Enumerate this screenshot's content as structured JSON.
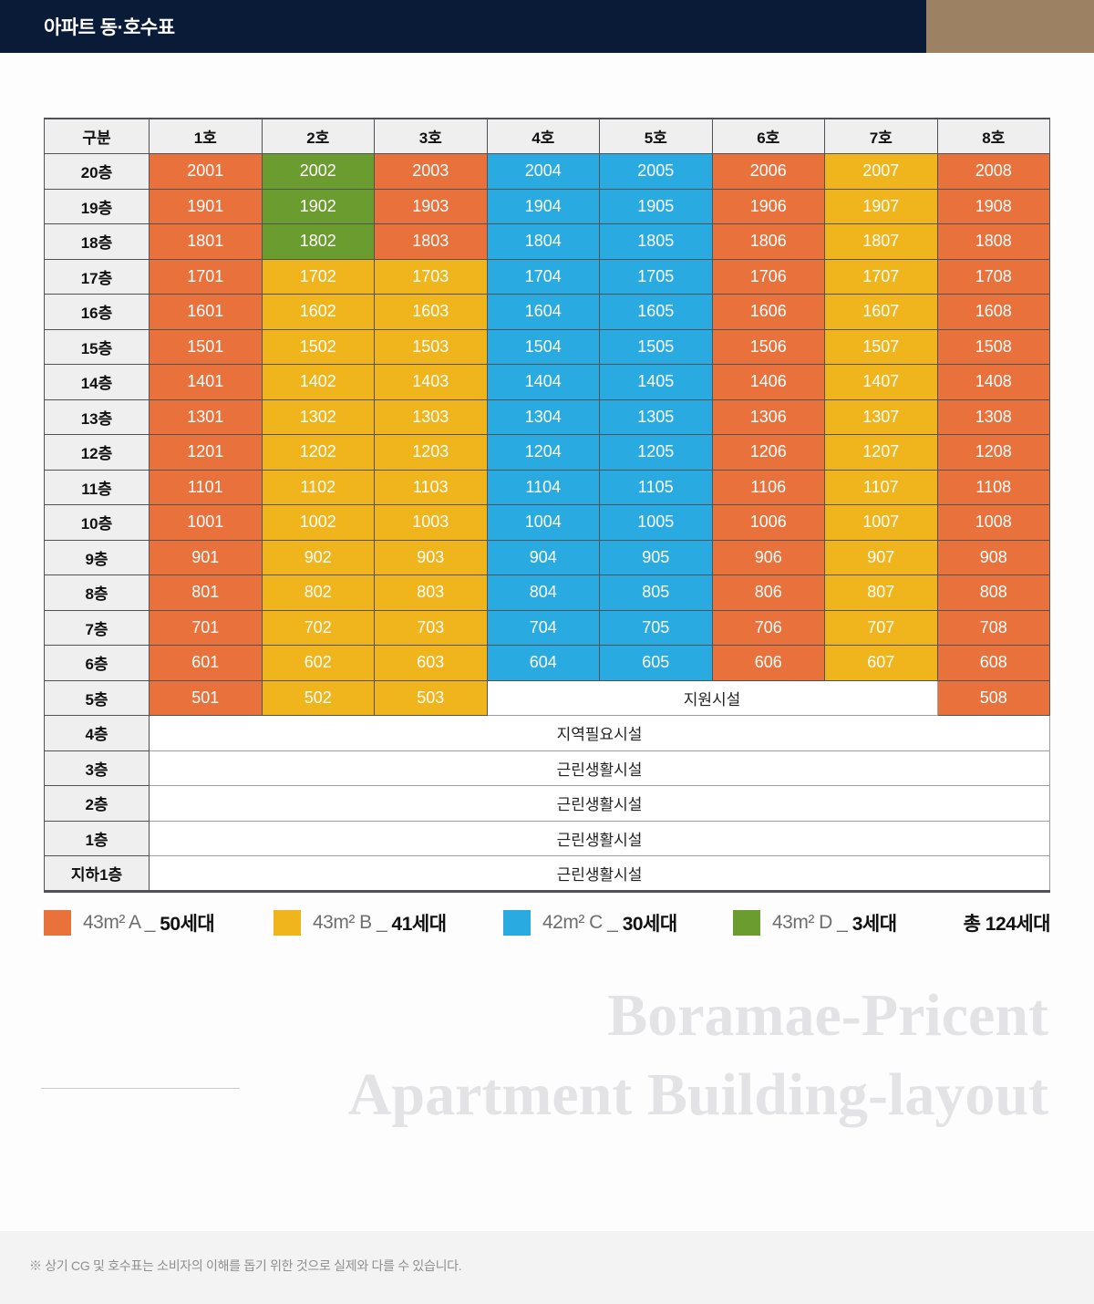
{
  "header": {
    "title": "아파트 동·호수표",
    "navy_color": "#0a1b37",
    "tan_color": "#9c8163"
  },
  "palette": {
    "A": "#e8713c",
    "B": "#f0b41d",
    "C": "#29abe2",
    "D": "#6a9c2f"
  },
  "table": {
    "corner_label": "구분",
    "column_headers": [
      "1호",
      "2호",
      "3호",
      "4호",
      "5호",
      "6호",
      "7호",
      "8호"
    ],
    "floors": [
      {
        "label": "20층",
        "cells": [
          {
            "text": "2001",
            "type": "A"
          },
          {
            "text": "2002",
            "type": "D"
          },
          {
            "text": "2003",
            "type": "A"
          },
          {
            "text": "2004",
            "type": "C"
          },
          {
            "text": "2005",
            "type": "C"
          },
          {
            "text": "2006",
            "type": "A"
          },
          {
            "text": "2007",
            "type": "B"
          },
          {
            "text": "2008",
            "type": "A"
          }
        ]
      },
      {
        "label": "19층",
        "cells": [
          {
            "text": "1901",
            "type": "A"
          },
          {
            "text": "1902",
            "type": "D"
          },
          {
            "text": "1903",
            "type": "A"
          },
          {
            "text": "1904",
            "type": "C"
          },
          {
            "text": "1905",
            "type": "C"
          },
          {
            "text": "1906",
            "type": "A"
          },
          {
            "text": "1907",
            "type": "B"
          },
          {
            "text": "1908",
            "type": "A"
          }
        ]
      },
      {
        "label": "18층",
        "cells": [
          {
            "text": "1801",
            "type": "A"
          },
          {
            "text": "1802",
            "type": "D"
          },
          {
            "text": "1803",
            "type": "A"
          },
          {
            "text": "1804",
            "type": "C"
          },
          {
            "text": "1805",
            "type": "C"
          },
          {
            "text": "1806",
            "type": "A"
          },
          {
            "text": "1807",
            "type": "B"
          },
          {
            "text": "1808",
            "type": "A"
          }
        ]
      },
      {
        "label": "17층",
        "cells": [
          {
            "text": "1701",
            "type": "A"
          },
          {
            "text": "1702",
            "type": "B"
          },
          {
            "text": "1703",
            "type": "B"
          },
          {
            "text": "1704",
            "type": "C"
          },
          {
            "text": "1705",
            "type": "C"
          },
          {
            "text": "1706",
            "type": "A"
          },
          {
            "text": "1707",
            "type": "B"
          },
          {
            "text": "1708",
            "type": "A"
          }
        ]
      },
      {
        "label": "16층",
        "cells": [
          {
            "text": "1601",
            "type": "A"
          },
          {
            "text": "1602",
            "type": "B"
          },
          {
            "text": "1603",
            "type": "B"
          },
          {
            "text": "1604",
            "type": "C"
          },
          {
            "text": "1605",
            "type": "C"
          },
          {
            "text": "1606",
            "type": "A"
          },
          {
            "text": "1607",
            "type": "B"
          },
          {
            "text": "1608",
            "type": "A"
          }
        ]
      },
      {
        "label": "15층",
        "cells": [
          {
            "text": "1501",
            "type": "A"
          },
          {
            "text": "1502",
            "type": "B"
          },
          {
            "text": "1503",
            "type": "B"
          },
          {
            "text": "1504",
            "type": "C"
          },
          {
            "text": "1505",
            "type": "C"
          },
          {
            "text": "1506",
            "type": "A"
          },
          {
            "text": "1507",
            "type": "B"
          },
          {
            "text": "1508",
            "type": "A"
          }
        ]
      },
      {
        "label": "14층",
        "cells": [
          {
            "text": "1401",
            "type": "A"
          },
          {
            "text": "1402",
            "type": "B"
          },
          {
            "text": "1403",
            "type": "B"
          },
          {
            "text": "1404",
            "type": "C"
          },
          {
            "text": "1405",
            "type": "C"
          },
          {
            "text": "1406",
            "type": "A"
          },
          {
            "text": "1407",
            "type": "B"
          },
          {
            "text": "1408",
            "type": "A"
          }
        ]
      },
      {
        "label": "13층",
        "cells": [
          {
            "text": "1301",
            "type": "A"
          },
          {
            "text": "1302",
            "type": "B"
          },
          {
            "text": "1303",
            "type": "B"
          },
          {
            "text": "1304",
            "type": "C"
          },
          {
            "text": "1305",
            "type": "C"
          },
          {
            "text": "1306",
            "type": "A"
          },
          {
            "text": "1307",
            "type": "B"
          },
          {
            "text": "1308",
            "type": "A"
          }
        ]
      },
      {
        "label": "12층",
        "cells": [
          {
            "text": "1201",
            "type": "A"
          },
          {
            "text": "1202",
            "type": "B"
          },
          {
            "text": "1203",
            "type": "B"
          },
          {
            "text": "1204",
            "type": "C"
          },
          {
            "text": "1205",
            "type": "C"
          },
          {
            "text": "1206",
            "type": "A"
          },
          {
            "text": "1207",
            "type": "B"
          },
          {
            "text": "1208",
            "type": "A"
          }
        ]
      },
      {
        "label": "11층",
        "cells": [
          {
            "text": "1101",
            "type": "A"
          },
          {
            "text": "1102",
            "type": "B"
          },
          {
            "text": "1103",
            "type": "B"
          },
          {
            "text": "1104",
            "type": "C"
          },
          {
            "text": "1105",
            "type": "C"
          },
          {
            "text": "1106",
            "type": "A"
          },
          {
            "text": "1107",
            "type": "B"
          },
          {
            "text": "1108",
            "type": "A"
          }
        ]
      },
      {
        "label": "10층",
        "cells": [
          {
            "text": "1001",
            "type": "A"
          },
          {
            "text": "1002",
            "type": "B"
          },
          {
            "text": "1003",
            "type": "B"
          },
          {
            "text": "1004",
            "type": "C"
          },
          {
            "text": "1005",
            "type": "C"
          },
          {
            "text": "1006",
            "type": "A"
          },
          {
            "text": "1007",
            "type": "B"
          },
          {
            "text": "1008",
            "type": "A"
          }
        ]
      },
      {
        "label": "9층",
        "cells": [
          {
            "text": "901",
            "type": "A"
          },
          {
            "text": "902",
            "type": "B"
          },
          {
            "text": "903",
            "type": "B"
          },
          {
            "text": "904",
            "type": "C"
          },
          {
            "text": "905",
            "type": "C"
          },
          {
            "text": "906",
            "type": "A"
          },
          {
            "text": "907",
            "type": "B"
          },
          {
            "text": "908",
            "type": "A"
          }
        ]
      },
      {
        "label": "8층",
        "cells": [
          {
            "text": "801",
            "type": "A"
          },
          {
            "text": "802",
            "type": "B"
          },
          {
            "text": "803",
            "type": "B"
          },
          {
            "text": "804",
            "type": "C"
          },
          {
            "text": "805",
            "type": "C"
          },
          {
            "text": "806",
            "type": "A"
          },
          {
            "text": "807",
            "type": "B"
          },
          {
            "text": "808",
            "type": "A"
          }
        ]
      },
      {
        "label": "7층",
        "cells": [
          {
            "text": "701",
            "type": "A"
          },
          {
            "text": "702",
            "type": "B"
          },
          {
            "text": "703",
            "type": "B"
          },
          {
            "text": "704",
            "type": "C"
          },
          {
            "text": "705",
            "type": "C"
          },
          {
            "text": "706",
            "type": "A"
          },
          {
            "text": "707",
            "type": "B"
          },
          {
            "text": "708",
            "type": "A"
          }
        ]
      },
      {
        "label": "6층",
        "cells": [
          {
            "text": "601",
            "type": "A"
          },
          {
            "text": "602",
            "type": "B"
          },
          {
            "text": "603",
            "type": "B"
          },
          {
            "text": "604",
            "type": "C"
          },
          {
            "text": "605",
            "type": "C"
          },
          {
            "text": "606",
            "type": "A"
          },
          {
            "text": "607",
            "type": "B"
          },
          {
            "text": "608",
            "type": "A"
          }
        ]
      },
      {
        "label": "5층",
        "cells": [
          {
            "text": "501",
            "type": "A"
          },
          {
            "text": "502",
            "type": "B"
          },
          {
            "text": "503",
            "type": "B"
          },
          {
            "text": "지원시설",
            "type": "F",
            "span": 4
          },
          {
            "text": "508",
            "type": "A"
          }
        ]
      },
      {
        "label": "4층",
        "cells": [
          {
            "text": "지역필요시설",
            "type": "F",
            "span": 8
          }
        ]
      },
      {
        "label": "3층",
        "cells": [
          {
            "text": "근린생활시설",
            "type": "F",
            "span": 8
          }
        ]
      },
      {
        "label": "2층",
        "cells": [
          {
            "text": "근린생활시설",
            "type": "F",
            "span": 8
          }
        ]
      },
      {
        "label": "1층",
        "cells": [
          {
            "text": "근린생활시설",
            "type": "F",
            "span": 8
          }
        ]
      },
      {
        "label": "지하1층",
        "cells": [
          {
            "text": "근린생활시설",
            "type": "F",
            "span": 8
          }
        ]
      }
    ]
  },
  "legend": {
    "separator": "_",
    "items": [
      {
        "type": "A",
        "label": "43m² A",
        "count": "50세대"
      },
      {
        "type": "B",
        "label": "43m² B",
        "count": "41세대"
      },
      {
        "type": "C",
        "label": "42m² C",
        "count": "30세대"
      },
      {
        "type": "D",
        "label": "43m² D",
        "count": "3세대"
      }
    ],
    "total": "총 124세대"
  },
  "watermark": {
    "line1": "Boramae-Pricent",
    "line2": "Apartment Building-layout"
  },
  "footer": {
    "note": "※ 상기 CG 및 호수표는 소비자의 이해를 돕기 위한 것으로 실제와 다를 수 있습니다."
  }
}
